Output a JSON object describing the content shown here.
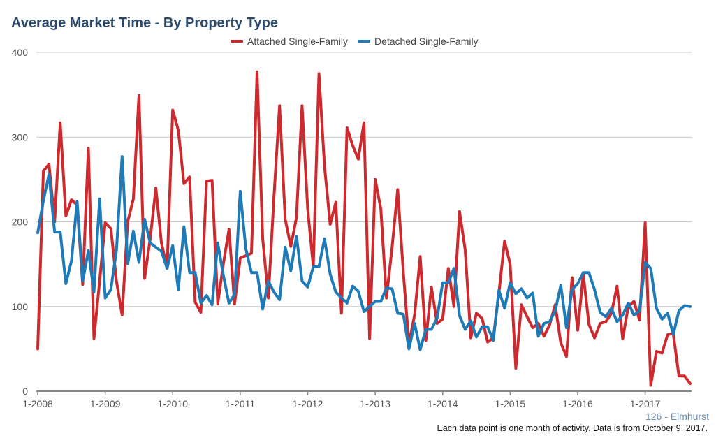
{
  "chart_data": {
    "type": "line",
    "title": "Average Market Time - By Property Type",
    "xlabel": "",
    "ylabel": "",
    "ylim": [
      0,
      400
    ],
    "yticks": [
      0,
      100,
      200,
      300,
      400
    ],
    "xticks": [
      "1-2008",
      "1-2009",
      "1-2010",
      "1-2011",
      "1-2012",
      "1-2013",
      "1-2014",
      "1-2015",
      "1-2016",
      "1-2017"
    ],
    "x_start": "1-2008",
    "x_interval": "1 month",
    "grid": "horizontal",
    "legend_position": "top-center",
    "series": [
      {
        "name": "Attached Single-Family",
        "color": "#cc2a2f",
        "values": [
          50,
          260,
          268,
          200,
          317,
          207,
          226,
          220,
          126,
          287,
          62,
          130,
          199,
          192,
          130,
          90,
          200,
          227,
          349,
          133,
          180,
          240,
          175,
          145,
          332,
          308,
          245,
          253,
          105,
          93,
          248,
          249,
          103,
          150,
          191,
          103,
          157,
          160,
          163,
          377,
          180,
          110,
          230,
          337,
          203,
          171,
          205,
          337,
          215,
          147,
          375,
          265,
          197,
          223,
          92,
          311,
          290,
          274,
          317,
          62,
          250,
          215,
          110,
          170,
          238,
          140,
          56,
          90,
          159,
          60,
          123,
          80,
          85,
          145,
          100,
          212,
          167,
          63,
          92,
          86,
          58,
          63,
          116,
          177,
          150,
          27,
          102,
          88,
          75,
          80,
          65,
          78,
          102,
          57,
          41,
          134,
          72,
          138,
          79,
          63,
          80,
          82,
          92,
          124,
          62,
          100,
          106,
          84,
          199,
          7,
          47,
          45,
          67,
          68,
          18,
          18,
          9
        ]
      },
      {
        "name": "Detached Single-Family",
        "color": "#1f7ab8",
        "values": [
          187,
          225,
          256,
          188,
          188,
          127,
          154,
          224,
          130,
          166,
          117,
          227,
          110,
          120,
          166,
          277,
          150,
          189,
          152,
          203,
          175,
          170,
          165,
          145,
          172,
          120,
          194,
          140,
          140,
          104,
          113,
          102,
          175,
          137,
          104,
          114,
          236,
          168,
          140,
          140,
          97,
          130,
          117,
          108,
          170,
          142,
          183,
          130,
          123,
          147,
          147,
          180,
          138,
          117,
          110,
          104,
          124,
          118,
          94,
          100,
          106,
          106,
          122,
          121,
          92,
          91,
          50,
          80,
          49,
          73,
          73,
          86,
          128,
          128,
          145,
          89,
          73,
          83,
          64,
          76,
          76,
          60,
          119,
          98,
          128,
          115,
          121,
          110,
          116,
          65,
          80,
          82,
          95,
          125,
          75,
          120,
          127,
          140,
          140,
          120,
          93,
          88,
          98,
          82,
          90,
          104,
          90,
          95,
          152,
          145,
          98,
          85,
          92,
          67,
          95,
          101,
          100
        ]
      }
    ]
  },
  "footer": {
    "location": "126 - Elmhurst",
    "note": "Each data point is one month of activity. Data is from October 9, 2017."
  }
}
